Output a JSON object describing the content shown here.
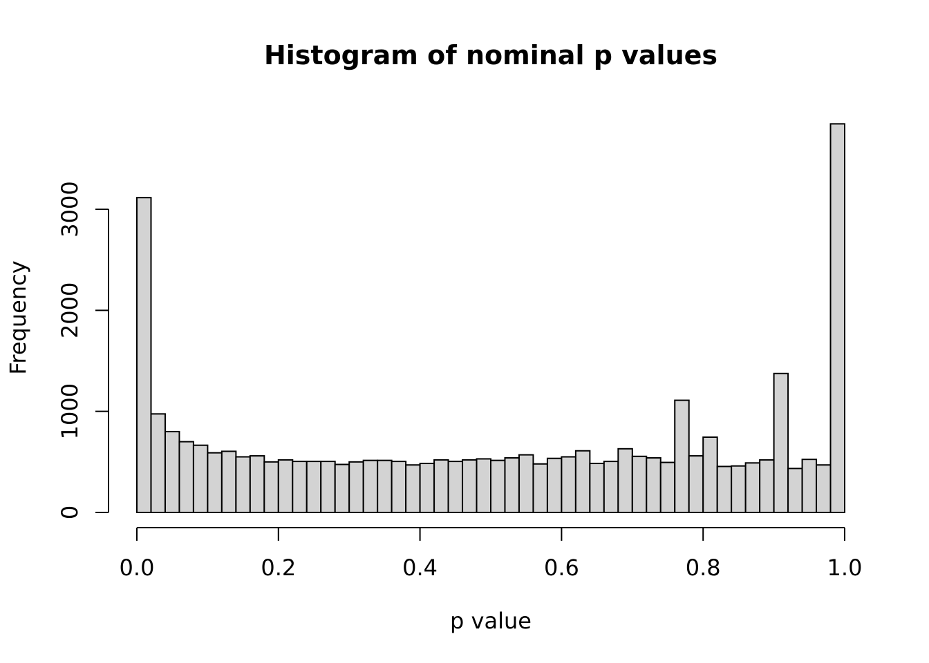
{
  "chart_data": {
    "type": "bar",
    "title": "Histogram of nominal p values",
    "xlabel": "p value",
    "ylabel": "Frequency",
    "xlim": [
      0,
      1
    ],
    "ylim": [
      0,
      3850
    ],
    "bin_width": 0.02,
    "x_ticks": [
      {
        "value": 0.0,
        "label": "0.0"
      },
      {
        "value": 0.2,
        "label": "0.2"
      },
      {
        "value": 0.4,
        "label": "0.4"
      },
      {
        "value": 0.6,
        "label": "0.6"
      },
      {
        "value": 0.8,
        "label": "0.8"
      },
      {
        "value": 1.0,
        "label": "1.0"
      }
    ],
    "y_ticks": [
      {
        "value": 0,
        "label": "0"
      },
      {
        "value": 1000,
        "label": "1000"
      },
      {
        "value": 2000,
        "label": "2000"
      },
      {
        "value": 3000,
        "label": "3000"
      }
    ],
    "bin_starts": [
      0.0,
      0.02,
      0.04,
      0.06,
      0.08,
      0.1,
      0.12,
      0.14,
      0.16,
      0.18,
      0.2,
      0.22,
      0.24,
      0.26,
      0.28,
      0.3,
      0.32,
      0.34,
      0.36,
      0.38,
      0.4,
      0.42,
      0.44,
      0.46,
      0.48,
      0.5,
      0.52,
      0.54,
      0.56,
      0.58,
      0.6,
      0.62,
      0.64,
      0.66,
      0.68,
      0.7,
      0.72,
      0.74,
      0.76,
      0.78,
      0.8,
      0.82,
      0.84,
      0.86,
      0.88,
      0.9,
      0.92,
      0.94,
      0.96,
      0.98
    ],
    "values": [
      3115,
      975,
      800,
      700,
      665,
      590,
      605,
      550,
      560,
      500,
      520,
      505,
      505,
      505,
      475,
      500,
      515,
      515,
      505,
      470,
      485,
      520,
      505,
      520,
      530,
      515,
      540,
      570,
      480,
      535,
      550,
      610,
      485,
      505,
      630,
      555,
      540,
      495,
      1110,
      560,
      745,
      455,
      460,
      490,
      520,
      1375,
      435,
      525,
      470,
      3845
    ],
    "colors": {
      "bar_fill": "#d3d3d3",
      "bar_stroke": "#000000"
    },
    "grid": false,
    "legend": "none"
  }
}
